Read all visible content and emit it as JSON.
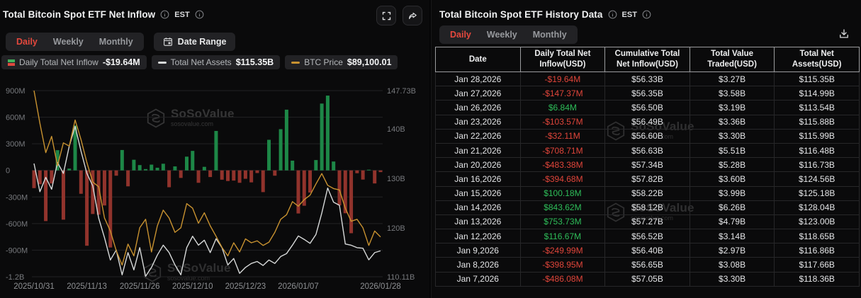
{
  "watermark": {
    "brand": "SoSoValue",
    "domain": "sosovalue.com"
  },
  "colors": {
    "accent_red": "#e5483d",
    "positive_green": "#2ebd59",
    "negative_red": "#e0453a",
    "bar_green": "#1d8747",
    "bar_red": "#91332c",
    "line_assets": "#d7d9d9",
    "line_btc": "#c89230",
    "grid": "#232325",
    "axis_label": "#77797d",
    "x_label": "#8e9093"
  },
  "left_panel": {
    "title": "Total Bitcoin Spot ETF Net Inflow",
    "timezone": "EST",
    "tabs": {
      "items": [
        "Daily",
        "Weekly",
        "Monthly"
      ],
      "active": "Daily"
    },
    "date_range_label": "Date Range",
    "legend": [
      {
        "icon": "inflow-bars",
        "label": "Daily Total Net Inflow",
        "value": "-$19.64M"
      },
      {
        "icon": "assets-dash",
        "label": "Total Net Assets",
        "value": "$115.35B"
      },
      {
        "icon": "btc-dash",
        "label": "BTC Price",
        "value": "$89,100.01"
      }
    ]
  },
  "chart_data": {
    "type": "combo",
    "title": "Total Bitcoin Spot ETF Net Inflow",
    "x_dates": [
      "2025/10/31",
      "2025/11/03",
      "2025/11/04",
      "2025/11/05",
      "2025/11/06",
      "2025/11/07",
      "2025/11/10",
      "2025/11/11",
      "2025/11/12",
      "2025/11/13",
      "2025/11/14",
      "2025/11/17",
      "2025/11/18",
      "2025/11/19",
      "2025/11/20",
      "2025/11/21",
      "2025/11/24",
      "2025/11/25",
      "2025/11/26",
      "2025/11/28",
      "2025/12/01",
      "2025/12/02",
      "2025/12/03",
      "2025/12/04",
      "2025/12/05",
      "2025/12/08",
      "2025/12/09",
      "2025/12/10",
      "2025/12/11",
      "2025/12/12",
      "2025/12/15",
      "2025/12/16",
      "2025/12/17",
      "2025/12/18",
      "2025/12/19",
      "2025/12/22",
      "2025/12/23",
      "2025/12/24",
      "2025/12/26",
      "2025/12/29",
      "2025/12/30",
      "2025/12/31",
      "2026/01/02",
      "2026/01/05",
      "2026/01/06",
      "2026/01/07",
      "2026/01/08",
      "2026/01/09",
      "2026/01/12",
      "2026/01/13",
      "2026/01/14",
      "2026/01/15",
      "2026/01/16",
      "2026/01/20",
      "2026/01/21",
      "2026/01/22",
      "2026/01/23",
      "2026/01/26",
      "2026/01/27",
      "2026/01/28"
    ],
    "series": [
      {
        "name": "Daily Total Net Inflow",
        "type": "bar",
        "unit": "M USD",
        "values": [
          -200,
          -156,
          -572,
          -148,
          228,
          -556,
          20,
          508,
          -264,
          -850,
          -492,
          -500,
          -396,
          -870,
          -60,
          230,
          -180,
          120,
          60,
          15,
          65,
          30,
          75,
          -190,
          45,
          -85,
          155,
          220,
          -140,
          40,
          -75,
          445,
          -105,
          -120,
          -115,
          -140,
          -95,
          -135,
          -30,
          -245,
          345,
          -60,
          465,
          685,
          110,
          -486.08,
          -398.95,
          -249.99,
          116.67,
          753.73,
          843.62,
          100.18,
          -394.68,
          -483.38,
          -708.71,
          -32.11,
          -103.57,
          6.84,
          -147.37,
          -19.64
        ]
      },
      {
        "name": "Total Net Assets",
        "type": "line",
        "unit": "B USD",
        "values": [
          133.0,
          127.3,
          130.2,
          127.8,
          133.2,
          131.0,
          136.5,
          140.5,
          135.5,
          131.0,
          128.5,
          122.0,
          118.0,
          113.5,
          115.5,
          110.5,
          115.0,
          111.5,
          116.0,
          110.2,
          112.0,
          114.5,
          116.5,
          115.0,
          112.5,
          110.5,
          116.0,
          118.3,
          116.5,
          117.5,
          115.0,
          117.8,
          116.0,
          112.5,
          113.8,
          110.8,
          112.0,
          112.8,
          113.2,
          112.4,
          113.5,
          112.8,
          114.2,
          114.8,
          116.5,
          118.36,
          117.66,
          116.86,
          118.65,
          123.0,
          128.04,
          125.18,
          124.56,
          116.73,
          116.48,
          115.99,
          115.88,
          113.54,
          114.99,
          115.35
        ]
      },
      {
        "name": "BTC Price",
        "type": "line",
        "unit": "USD",
        "values": [
          111500,
          106500,
          102000,
          104500,
          100000,
          103500,
          103000,
          107000,
          104000,
          100500,
          97500,
          96800,
          92000,
          90000,
          87000,
          84800,
          88000,
          86200,
          90500,
          91800,
          86800,
          90800,
          93200,
          92000,
          89800,
          90500,
          94200,
          93500,
          91200,
          92800,
          90800,
          89200,
          87500,
          86200,
          88200,
          86800,
          88800,
          88200,
          88500,
          87800,
          88300,
          89800,
          91800,
          92500,
          94500,
          93800,
          94800,
          95500,
          97200,
          98800,
          97000,
          96500,
          96300,
          93500,
          91500,
          91800,
          90500,
          87800,
          90000,
          89100
        ]
      }
    ],
    "left_axis": {
      "ticks": [
        "900M",
        "600M",
        "300M",
        "0",
        "-300M",
        "-600M",
        "-900M",
        "-1.2B"
      ],
      "tick_values": [
        900,
        600,
        300,
        0,
        -300,
        -600,
        -900,
        -1200
      ],
      "min": -1200,
      "max": 900
    },
    "right_axis": {
      "ticks": [
        "147.73B",
        "140B",
        "130B",
        "120B",
        "110.11B"
      ],
      "tick_values": [
        147.73,
        140,
        130,
        120,
        110.11
      ],
      "min": 110.11,
      "max": 147.73
    },
    "btc_axis_hidden": {
      "min": 83000,
      "max": 111500
    },
    "x_tick_labels": [
      "2025/10/31",
      "2025/11/13",
      "2025/11/26",
      "2025/12/10",
      "2025/12/23",
      "2026/01/07",
      "2026/01/28"
    ],
    "x_tick_indices": [
      0,
      9,
      18,
      27,
      36,
      45,
      59
    ],
    "grid": true,
    "legend_position": "top"
  },
  "right_panel": {
    "title": "Total Bitcoin Spot ETF History Data",
    "timezone": "EST",
    "tabs": {
      "items": [
        "Daily",
        "Weekly",
        "Monthly"
      ],
      "active": "Daily"
    },
    "table": {
      "columns": [
        "Date",
        "Daily Total Net Inflow(USD)",
        "Cumulative Total Net Inflow(USD)",
        "Total Value Traded(USD)",
        "Total Net Assets(USD)"
      ],
      "rows": [
        {
          "date": "Jan 28,2026",
          "inflow": "-$19.64M",
          "inflow_sign": "negative",
          "cumulative": "$56.33B",
          "traded": "$3.27B",
          "assets": "$115.35B"
        },
        {
          "date": "Jan 27,2026",
          "inflow": "-$147.37M",
          "inflow_sign": "negative",
          "cumulative": "$56.35B",
          "traded": "$3.58B",
          "assets": "$114.99B"
        },
        {
          "date": "Jan 26,2026",
          "inflow": "$6.84M",
          "inflow_sign": "positive",
          "cumulative": "$56.50B",
          "traded": "$3.19B",
          "assets": "$113.54B"
        },
        {
          "date": "Jan 23,2026",
          "inflow": "-$103.57M",
          "inflow_sign": "negative",
          "cumulative": "$56.49B",
          "traded": "$3.36B",
          "assets": "$115.88B"
        },
        {
          "date": "Jan 22,2026",
          "inflow": "-$32.11M",
          "inflow_sign": "negative",
          "cumulative": "$56.60B",
          "traded": "$3.30B",
          "assets": "$115.99B"
        },
        {
          "date": "Jan 21,2026",
          "inflow": "-$708.71M",
          "inflow_sign": "negative",
          "cumulative": "$56.63B",
          "traded": "$5.51B",
          "assets": "$116.48B"
        },
        {
          "date": "Jan 20,2026",
          "inflow": "-$483.38M",
          "inflow_sign": "negative",
          "cumulative": "$57.34B",
          "traded": "$5.28B",
          "assets": "$116.73B"
        },
        {
          "date": "Jan 16,2026",
          "inflow": "-$394.68M",
          "inflow_sign": "negative",
          "cumulative": "$57.82B",
          "traded": "$3.60B",
          "assets": "$124.56B"
        },
        {
          "date": "Jan 15,2026",
          "inflow": "$100.18M",
          "inflow_sign": "positive",
          "cumulative": "$58.22B",
          "traded": "$3.99B",
          "assets": "$125.18B"
        },
        {
          "date": "Jan 14,2026",
          "inflow": "$843.62M",
          "inflow_sign": "positive",
          "cumulative": "$58.12B",
          "traded": "$6.26B",
          "assets": "$128.04B"
        },
        {
          "date": "Jan 13,2026",
          "inflow": "$753.73M",
          "inflow_sign": "positive",
          "cumulative": "$57.27B",
          "traded": "$4.79B",
          "assets": "$123.00B"
        },
        {
          "date": "Jan 12,2026",
          "inflow": "$116.67M",
          "inflow_sign": "positive",
          "cumulative": "$56.52B",
          "traded": "$3.14B",
          "assets": "$118.65B"
        },
        {
          "date": "Jan 9,2026",
          "inflow": "-$249.99M",
          "inflow_sign": "negative",
          "cumulative": "$56.40B",
          "traded": "$2.97B",
          "assets": "$116.86B"
        },
        {
          "date": "Jan 8,2026",
          "inflow": "-$398.95M",
          "inflow_sign": "negative",
          "cumulative": "$56.65B",
          "traded": "$3.08B",
          "assets": "$117.66B"
        },
        {
          "date": "Jan 7,2026",
          "inflow": "-$486.08M",
          "inflow_sign": "negative",
          "cumulative": "$57.05B",
          "traded": "$3.30B",
          "assets": "$118.36B"
        }
      ]
    }
  }
}
